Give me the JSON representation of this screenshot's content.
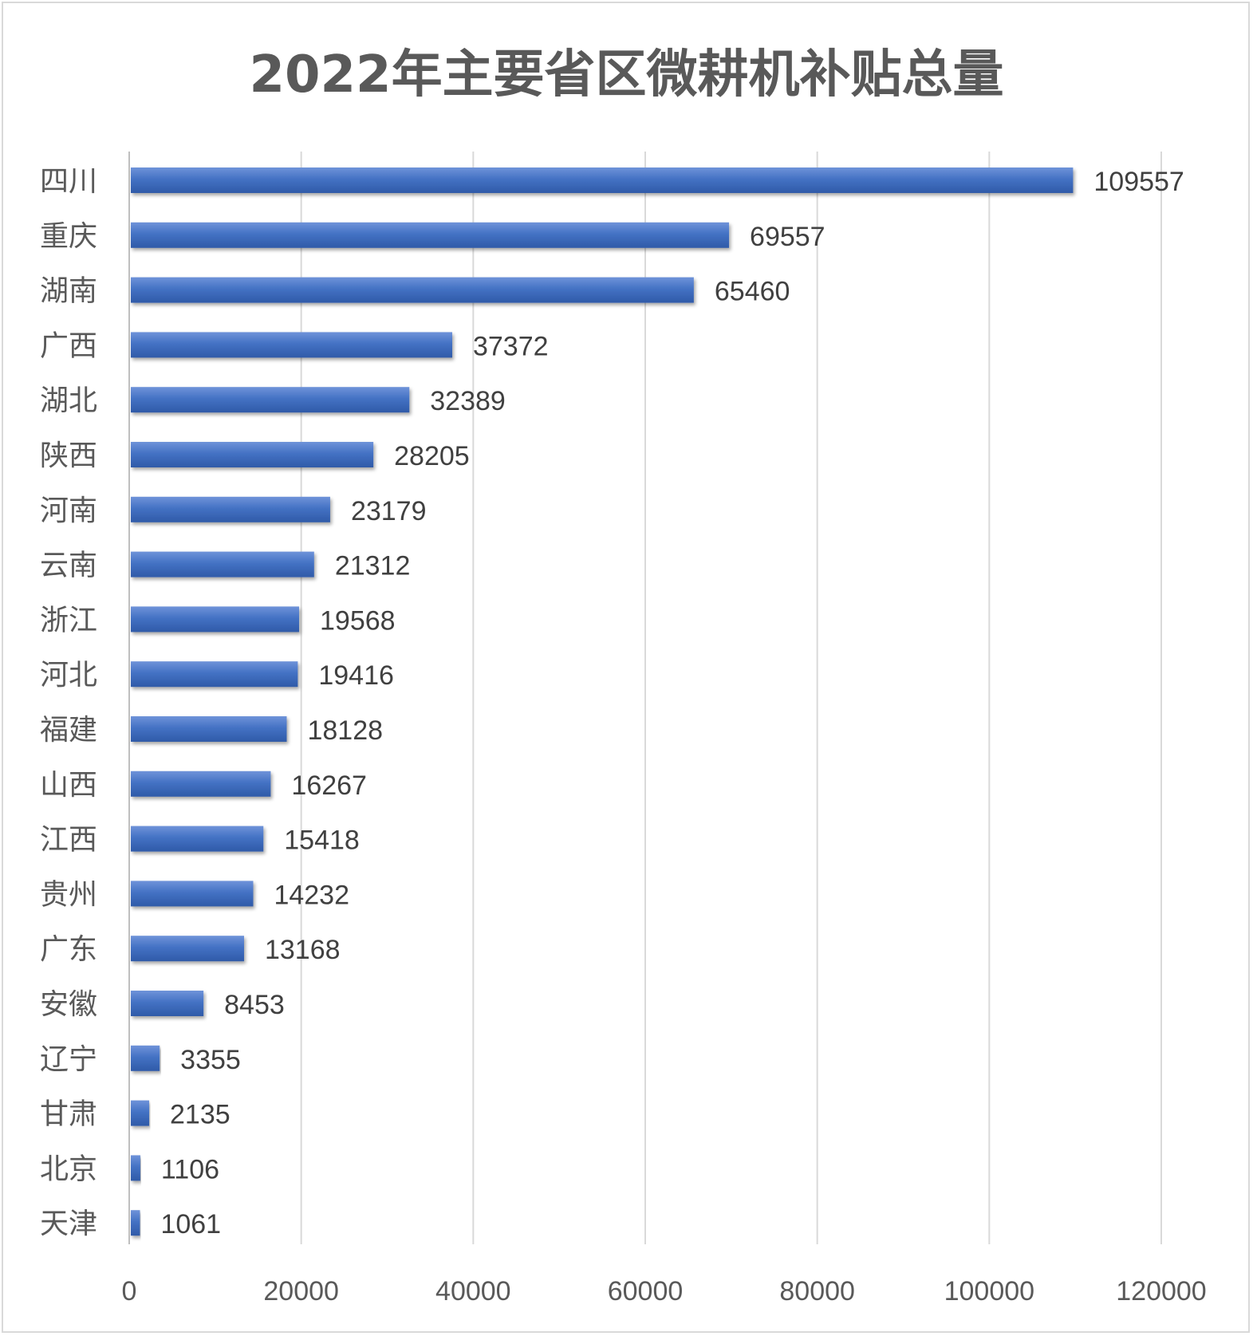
{
  "chart_data": {
    "type": "bar",
    "orientation": "horizontal",
    "title": "2022年主要省区微耕机补贴总量",
    "categories": [
      "四川",
      "重庆",
      "湖南",
      "广西",
      "湖北",
      "陕西",
      "河南",
      "云南",
      "浙江",
      "河北",
      "福建",
      "山西",
      "江西",
      "贵州",
      "广东",
      "安徽",
      "辽宁",
      "甘肃",
      "北京",
      "天津"
    ],
    "values": [
      109557,
      69557,
      65460,
      37372,
      32389,
      28205,
      23179,
      21312,
      19568,
      19416,
      18128,
      16267,
      15418,
      14232,
      13168,
      8453,
      3355,
      2135,
      1106,
      1061
    ],
    "value_labels": [
      "109557",
      "69557",
      "65460",
      "37372",
      "32389",
      "28205",
      "23179",
      "21312",
      "19568",
      "19416",
      "18128",
      "16267",
      "15418",
      "14232",
      "13168",
      "8453",
      "3355",
      "2135",
      "1106",
      "1061"
    ],
    "xlim": [
      0,
      120000
    ],
    "ticks": [
      "0",
      "20000",
      "40000",
      "60000",
      "80000",
      "100000",
      "120000"
    ],
    "tick_values": [
      0,
      20000,
      40000,
      60000,
      80000,
      100000,
      120000
    ],
    "grid": true,
    "legend": "none",
    "bar_color": "#4472c4"
  }
}
